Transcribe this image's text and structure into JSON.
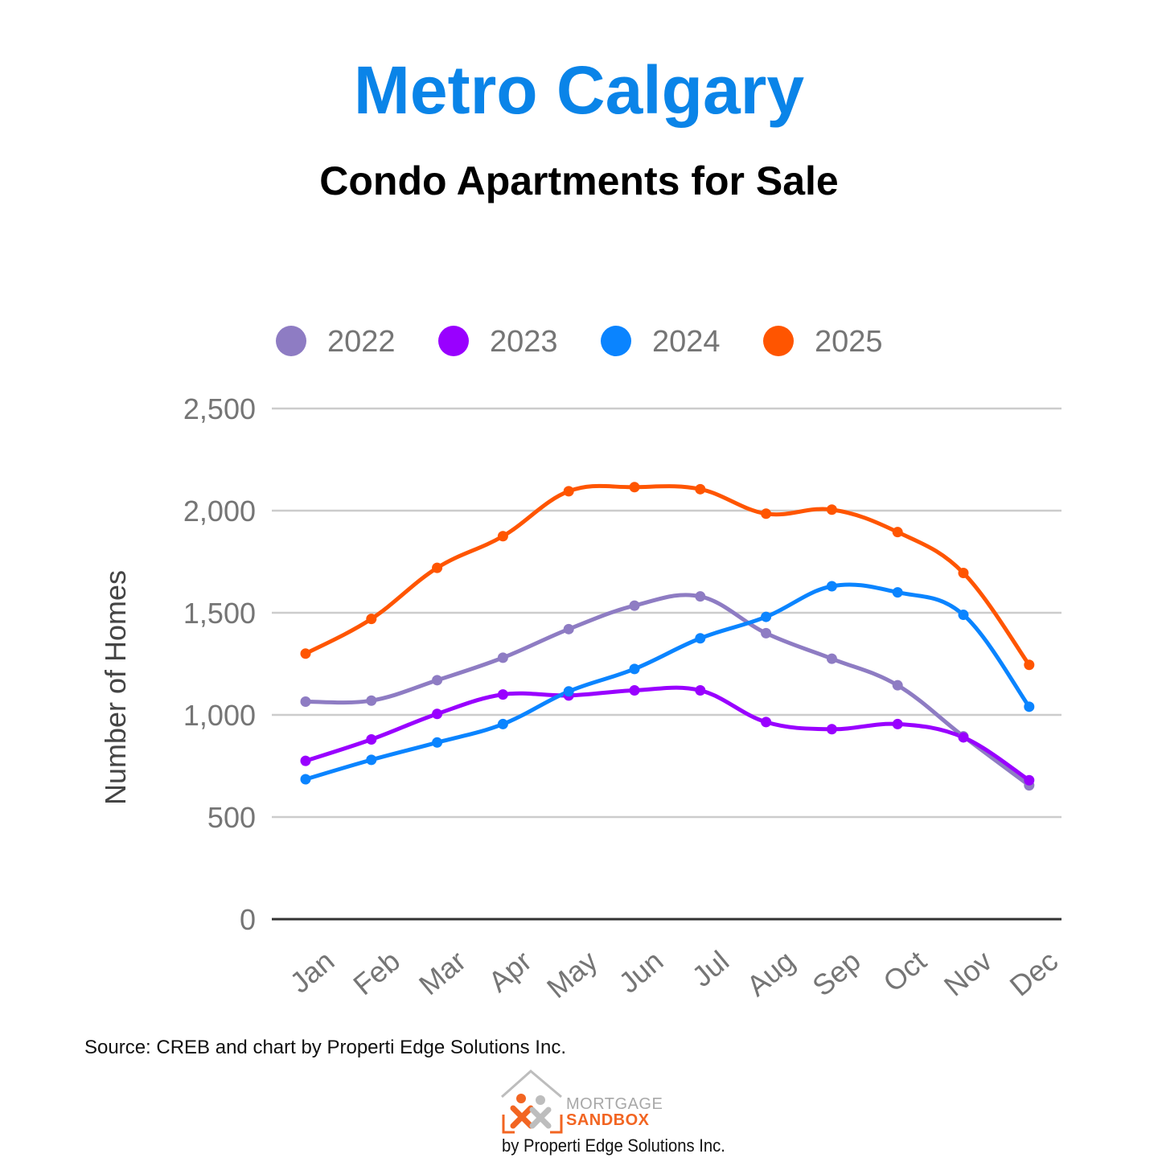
{
  "title": "Metro Calgary",
  "subtitle": "Condo Apartments for Sale",
  "source": "Source: CREB and chart by Properti Edge Solutions Inc.",
  "logo": {
    "line1": "MORTGAGE",
    "line2": "SANDBOX",
    "byline": "by Properti Edge Solutions Inc."
  },
  "chart_data": {
    "type": "line",
    "title": "",
    "xlabel": "",
    "ylabel": "Number of Homes",
    "ylim": [
      0,
      2500
    ],
    "yticks": [
      0,
      500,
      1000,
      1500,
      2000,
      2500
    ],
    "ytick_labels": [
      "0",
      "500",
      "1,000",
      "1,500",
      "2,000",
      "2,500"
    ],
    "grid": true,
    "legend": "top",
    "smooth": true,
    "categories": [
      "Jan",
      "Feb",
      "Mar",
      "Apr",
      "May",
      "Jun",
      "Jul",
      "Aug",
      "Sep",
      "Oct",
      "Nov",
      "Dec"
    ],
    "series": [
      {
        "name": "2022",
        "color": "#8E7CC3",
        "values": [
          1065,
          1070,
          1170,
          1280,
          1420,
          1535,
          1580,
          1400,
          1275,
          1145,
          895,
          655
        ]
      },
      {
        "name": "2023",
        "color": "#9900FF",
        "values": [
          775,
          880,
          1005,
          1100,
          1095,
          1120,
          1120,
          965,
          930,
          955,
          890,
          680
        ]
      },
      {
        "name": "2024",
        "color": "#0A84FF",
        "values": [
          685,
          780,
          865,
          955,
          1115,
          1225,
          1375,
          1480,
          1630,
          1600,
          1490,
          1040
        ]
      },
      {
        "name": "2025",
        "color": "#FF5500",
        "values": [
          1300,
          1470,
          1720,
          1875,
          2095,
          2115,
          2105,
          1985,
          2005,
          1895,
          1695,
          1245
        ]
      }
    ]
  }
}
